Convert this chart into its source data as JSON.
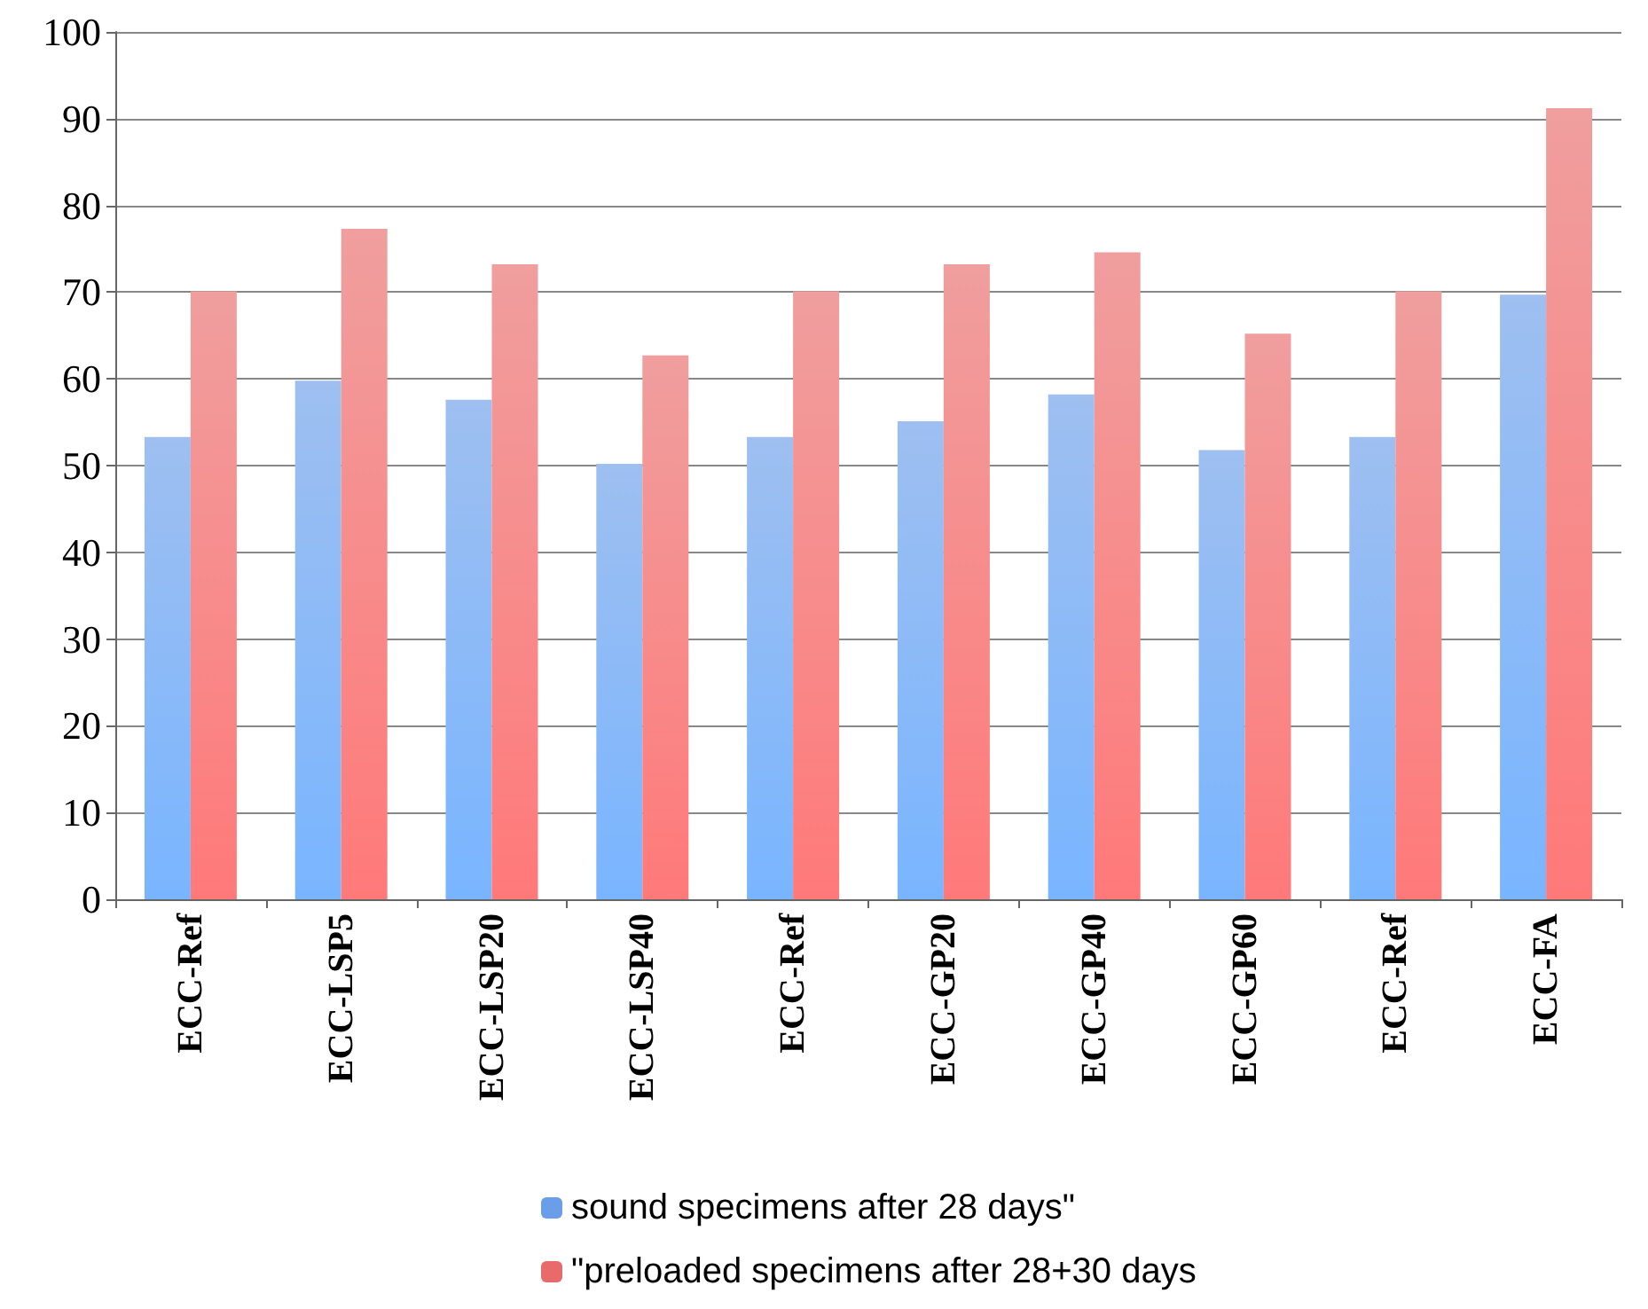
{
  "chart_data": {
    "type": "bar",
    "categories": [
      "ECC-Ref",
      "ECC-LSP5",
      "ECC-LSP20",
      "ECC-LSP40",
      "ECC-Ref",
      "ECC-GP20",
      "ECC-GP40",
      "ECC-GP60",
      "ECC-Ref",
      "ECC-FA"
    ],
    "series": [
      {
        "name": "sound specimens after 28 days\"",
        "color": "#6a9ee8",
        "values": [
          53.3,
          59.8,
          57.6,
          50.2,
          53.3,
          55.1,
          58.2,
          51.8,
          53.3,
          69.7
        ]
      },
      {
        "name": "\"preloaded specimens after 28+30 days",
        "color": "#e86a6a",
        "values": [
          70.1,
          77.3,
          73.2,
          62.7,
          70.1,
          73.2,
          74.6,
          65.2,
          70.1,
          91.2
        ]
      }
    ],
    "ylim": [
      0,
      100
    ],
    "yticks": [
      0,
      10,
      20,
      30,
      40,
      50,
      60,
      70,
      80,
      90,
      100
    ],
    "grid": "y",
    "legend": "bottom"
  }
}
